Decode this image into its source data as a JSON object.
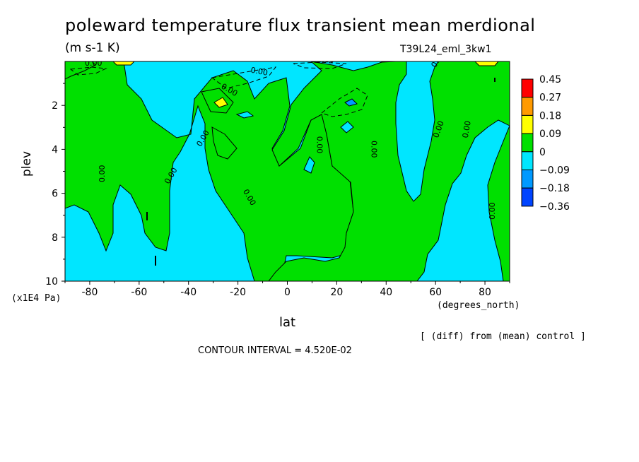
{
  "chart_data": {
    "type": "heatmap",
    "title": "poleward temperature flux transient mean merdional",
    "units": "(m s-1 K)",
    "run_label": "T39L24_eml_3kw1",
    "xlabel": "lat",
    "ylabel": "plev",
    "x_units": "(degrees_north)",
    "y_units": "(x1E4 Pa)",
    "xlim": [
      -90,
      90
    ],
    "ylim": [
      10,
      0
    ],
    "x_ticks": [
      -80,
      -60,
      -40,
      -20,
      0,
      20,
      40,
      60,
      80
    ],
    "y_ticks": [
      2,
      4,
      6,
      8,
      10
    ],
    "colorbar": {
      "levels": [
        "0.45",
        "0.27",
        "0.18",
        "0.09",
        "0",
        "−0.09",
        "−0.18",
        "−0.36"
      ],
      "colors": [
        "#ff0000",
        "#ff9a00",
        "#ffff00",
        "#00e000",
        "#00e6ff",
        "#0099ff",
        "#0044ff"
      ]
    },
    "contour_labels": [
      "0.00"
    ],
    "regions": [
      {
        "value": "0.09",
        "lat": -73,
        "plev": 0.1
      },
      {
        "value": "0.09",
        "lat": -27,
        "plev": 2.0
      },
      {
        "value": "0.09",
        "lat": 80,
        "plev": 0.1
      },
      {
        "value": "-0.09",
        "lat": 25,
        "plev": 2.0
      }
    ]
  },
  "annotations": {
    "diff_note": "[ (diff) from (mean) control ]",
    "contour_note": "CONTOUR INTERVAL = 4.520E-02"
  }
}
